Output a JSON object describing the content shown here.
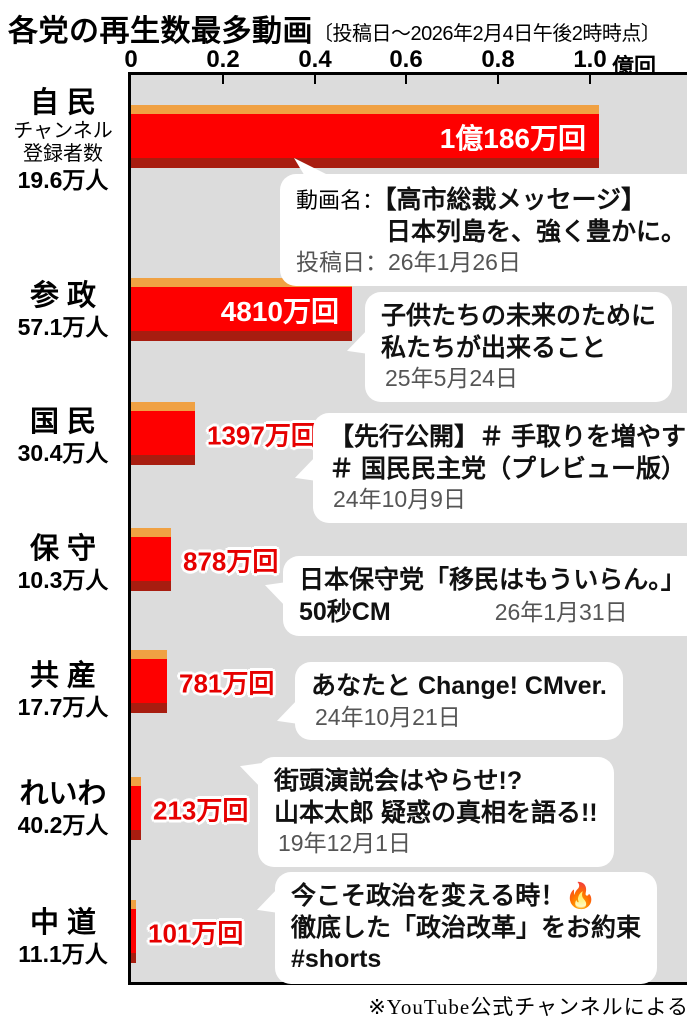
{
  "title": {
    "main": "各党の再生数最多動画",
    "note": "〔投稿日〜2026年2月4日午後2時時点〕"
  },
  "footnote": "※YouTube公式チャンネルによる",
  "colors": {
    "bar_red": "#fe0000",
    "bar_top_edge": "#f0a143",
    "bar_bottom_edge": "#a81d10",
    "plot_background": "#dcdcdc",
    "value_text_red": "#e60000",
    "value_text_inside": "#ffffff",
    "bubble_background": "#ffffff",
    "date_gray": "#555555"
  },
  "chart_data": {
    "type": "bar",
    "orientation": "horizontal",
    "title": "各党の再生数最多動画",
    "subtitle": "〔投稿日〜2026年2月4日午後2時時点〕",
    "x_axis_unit": "億回",
    "x_ticks": [
      0,
      0.2,
      0.4,
      0.6,
      0.8,
      1.0
    ],
    "x_tick_labels": [
      "0",
      "0.2",
      "0.4",
      "0.6",
      "0.8",
      "1.0"
    ],
    "xlim": [
      0,
      1.21
    ],
    "grid": false,
    "source_note": "※YouTube公式チャンネルによる",
    "rows": [
      {
        "party": "自 民",
        "subscriber_note": [
          "チャンネル",
          "登録者数"
        ],
        "subscribers": "19.6万人",
        "views_man_kai": 10186,
        "views_oku": 1.0186,
        "views_label": "1億186万回",
        "label_position": "inside",
        "bubble": {
          "name_prefix": "動画名：",
          "title_lines": [
            "【高市総裁メッセージ】",
            "日本列島を、強く豊かに。"
          ],
          "date_prefix": "投稿日：",
          "date": "26年1月26日"
        }
      },
      {
        "party": "参 政",
        "subscribers": "57.1万人",
        "views_man_kai": 4810,
        "views_oku": 0.481,
        "views_label": "4810万回",
        "label_position": "inside",
        "bubble": {
          "title_lines": [
            "子供たちの未来のために",
            "私たちが出来ること"
          ],
          "date": "25年5月24日"
        }
      },
      {
        "party": "国 民",
        "subscribers": "30.4万人",
        "views_man_kai": 1397,
        "views_oku": 0.1397,
        "views_label": "1397万回",
        "label_position": "outside",
        "bubble": {
          "title_lines": [
            "【先行公開】＃ 手取りを増やす",
            "＃ 国民民主党（プレビュー版）"
          ],
          "date": "24年10月9日"
        }
      },
      {
        "party": "保 守",
        "subscribers": "10.3万人",
        "views_man_kai": 878,
        "views_oku": 0.0878,
        "views_label": "878万回",
        "label_position": "outside",
        "bubble": {
          "title_lines": [
            "日本保守党「移民はもういらん。」"
          ],
          "inline_left": "50秒CM",
          "date": "26年1月31日"
        }
      },
      {
        "party": "共 産",
        "subscribers": "17.7万人",
        "views_man_kai": 781,
        "views_oku": 0.0781,
        "views_label": "781万回",
        "label_position": "outside",
        "bubble": {
          "title_lines": [
            "あなたと Change! CMver."
          ],
          "date": "24年10月21日"
        }
      },
      {
        "party": "れいわ",
        "subscribers": "40.2万人",
        "views_man_kai": 213,
        "views_oku": 0.0213,
        "views_label": "213万回",
        "label_position": "outside",
        "bubble": {
          "title_lines": [
            "街頭演説会はやらせ!?",
            "山本太郎 疑惑の真相を語る!!"
          ],
          "date": "19年12月1日"
        }
      },
      {
        "party": "中 道",
        "subscribers": "11.1万人",
        "views_man_kai": 101,
        "views_oku": 0.0101,
        "views_label": "101万回",
        "label_position": "outside",
        "bubble": {
          "title_lines": [
            "今こそ政治を変える時！🔥",
            "徹底した「政治改革」をお約束",
            "#shorts"
          ]
        }
      }
    ]
  }
}
